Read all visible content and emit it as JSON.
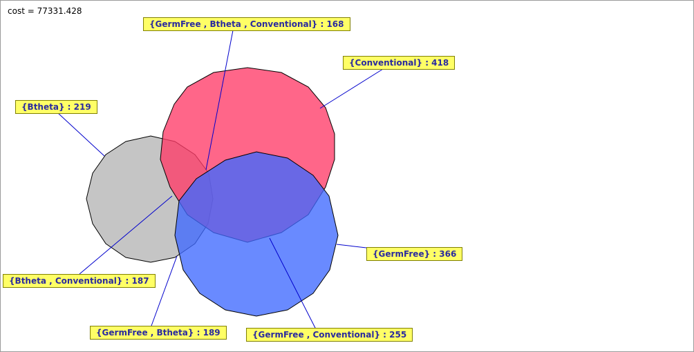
{
  "cost_text": "cost = 77331.428",
  "sets": [
    {
      "name": "Conventional",
      "color": "#ff3b68"
    },
    {
      "name": "Btheta",
      "color": "#a6a6a6"
    },
    {
      "name": "GermFree",
      "color": "#3f69ff"
    }
  ],
  "labels": {
    "all_three": "{GermFree , Btheta , Conventional} : 168",
    "conventional": "{Conventional} : 418",
    "btheta": "{Btheta} : 219",
    "btheta_conventional": "{Btheta , Conventional} : 187",
    "germfree": "{GermFree} : 366",
    "germfree_btheta": "{GermFree , Btheta} : 189",
    "germfree_conventional": "{GermFree , Conventional} : 255"
  },
  "colors": {
    "label_fill": "#ffff66",
    "label_text": "#2a2a9f",
    "leader_line": "#0000cc",
    "outline": "#000000"
  }
}
